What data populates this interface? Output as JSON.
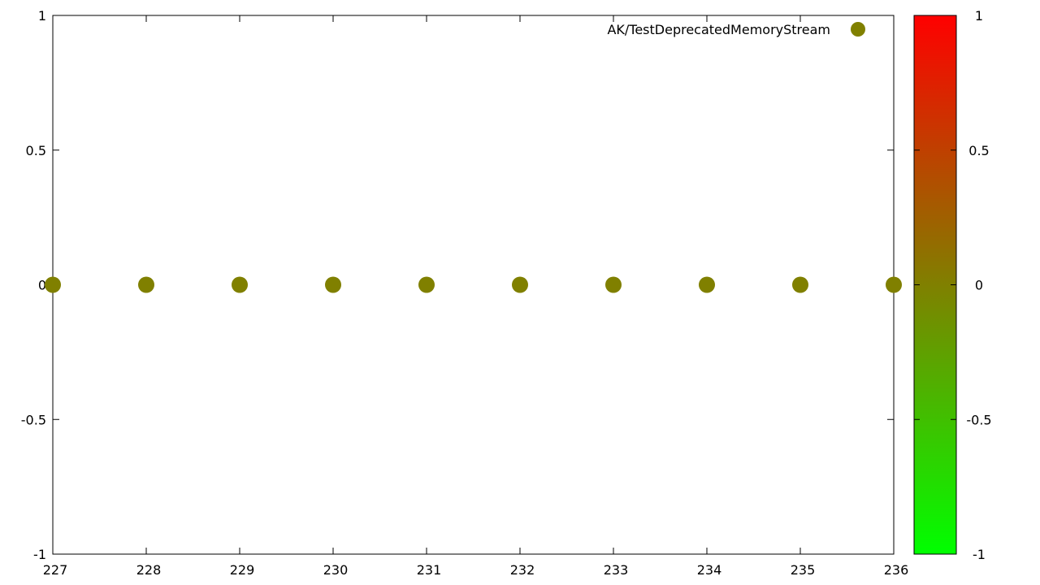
{
  "chart_data": {
    "type": "scatter",
    "title": "",
    "xlabel": "",
    "ylabel": "",
    "xlim": [
      227,
      236
    ],
    "ylim": [
      -1,
      1
    ],
    "x_ticks": [
      "227",
      "228",
      "229",
      "230",
      "231",
      "232",
      "233",
      "234",
      "235",
      "236"
    ],
    "y_ticks": [
      "-1",
      "-0.5",
      "0",
      "0.5",
      "1"
    ],
    "grid": false,
    "legend_position": "top-right",
    "series": [
      {
        "name": "AK/TestDeprecatedMemoryStream",
        "color": "#808000",
        "x": [
          227,
          228,
          229,
          230,
          231,
          232,
          233,
          234,
          235,
          236
        ],
        "y": [
          0,
          0,
          0,
          0,
          0,
          0,
          0,
          0,
          0,
          0
        ]
      }
    ],
    "colorbar": {
      "range": [
        -1,
        1
      ],
      "ticks": [
        "-1",
        "-0.5",
        "0",
        "0.5",
        "1"
      ],
      "colors": [
        "#00ff00",
        "#808000",
        "#ff0000"
      ]
    }
  }
}
